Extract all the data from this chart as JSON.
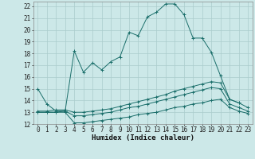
{
  "xlabel": "Humidex (Indice chaleur)",
  "bg_color": "#cce8e8",
  "grid_color": "#aacccc",
  "line_color": "#1a6e6a",
  "line1_x": [
    0,
    1,
    2,
    3,
    4,
    5,
    6,
    7,
    8,
    9,
    10,
    11,
    12,
    13,
    14,
    15,
    16,
    17,
    18,
    19,
    20,
    21,
    22
  ],
  "line1_y": [
    15.0,
    13.7,
    13.1,
    13.1,
    18.2,
    16.4,
    17.2,
    16.6,
    17.3,
    17.7,
    19.8,
    19.5,
    21.1,
    21.5,
    22.2,
    22.2,
    21.3,
    19.3,
    19.3,
    18.1,
    16.1,
    14.1,
    13.8
  ],
  "line2_x": [
    0,
    1,
    2,
    3,
    4,
    5,
    6,
    7,
    8,
    9,
    10,
    11,
    12,
    13,
    14,
    15,
    16,
    17,
    18,
    19,
    20,
    21,
    22,
    23
  ],
  "line2_y": [
    13.1,
    13.1,
    13.2,
    13.2,
    13.0,
    13.0,
    13.1,
    13.2,
    13.3,
    13.5,
    13.7,
    13.9,
    14.1,
    14.3,
    14.5,
    14.8,
    15.0,
    15.2,
    15.4,
    15.6,
    15.5,
    14.1,
    13.8,
    13.4
  ],
  "line3_x": [
    0,
    1,
    2,
    3,
    4,
    5,
    6,
    7,
    8,
    9,
    10,
    11,
    12,
    13,
    14,
    15,
    16,
    17,
    18,
    19,
    20,
    21,
    22,
    23
  ],
  "line3_y": [
    13.0,
    13.0,
    13.0,
    13.1,
    12.7,
    12.7,
    12.8,
    12.9,
    13.0,
    13.2,
    13.4,
    13.5,
    13.7,
    13.9,
    14.1,
    14.3,
    14.5,
    14.7,
    14.9,
    15.1,
    15.0,
    13.7,
    13.4,
    13.1
  ],
  "line4_x": [
    0,
    1,
    2,
    3,
    4,
    5,
    6,
    7,
    8,
    9,
    10,
    11,
    12,
    13,
    14,
    15,
    16,
    17,
    18,
    19,
    20,
    21,
    22,
    23
  ],
  "line4_y": [
    13.0,
    13.0,
    13.0,
    13.0,
    12.1,
    12.1,
    12.2,
    12.3,
    12.4,
    12.5,
    12.6,
    12.8,
    12.9,
    13.0,
    13.2,
    13.4,
    13.5,
    13.7,
    13.8,
    14.0,
    14.1,
    13.4,
    13.1,
    12.9
  ],
  "xlim": [
    -0.5,
    23.5
  ],
  "ylim": [
    12,
    22.4
  ],
  "xticks": [
    0,
    1,
    2,
    3,
    4,
    5,
    6,
    7,
    8,
    9,
    10,
    11,
    12,
    13,
    14,
    15,
    16,
    17,
    18,
    19,
    20,
    21,
    22,
    23
  ],
  "xticklabels": [
    "0",
    "1",
    "2",
    "3",
    "4",
    "5",
    "6",
    "7",
    "8",
    "9",
    "10",
    "11",
    "12",
    "13",
    "14",
    "15",
    "16",
    "17",
    "18",
    "19",
    "20",
    "21",
    "22",
    "23"
  ],
  "yticks": [
    12,
    13,
    14,
    15,
    16,
    17,
    18,
    19,
    20,
    21,
    22
  ],
  "yticklabels": [
    "12",
    "13",
    "14",
    "15",
    "16",
    "17",
    "18",
    "19",
    "20",
    "21",
    "22"
  ],
  "tick_fontsize": 5.5,
  "xlabel_fontsize": 6.5
}
